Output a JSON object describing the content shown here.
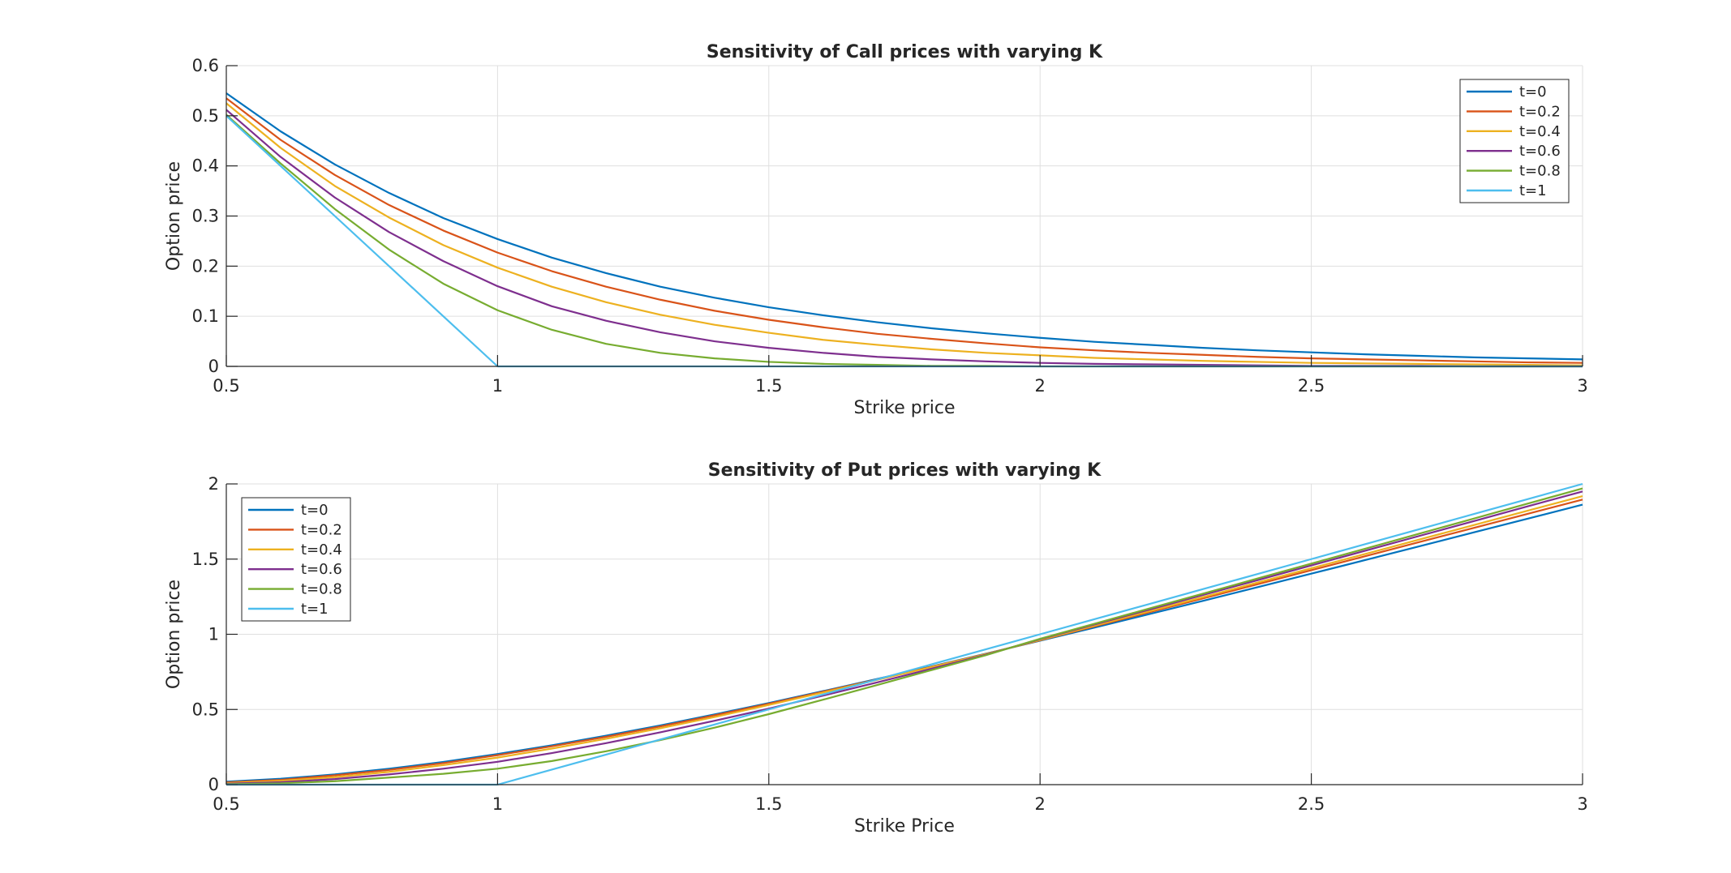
{
  "chart_data": [
    {
      "type": "line",
      "title": "Sensitivity of Call prices with varying K",
      "xlabel": "Strike price",
      "ylabel": "Option price",
      "xlim": [
        0.5,
        3
      ],
      "ylim": [
        0,
        0.6
      ],
      "xticks": [
        "0.5",
        "1",
        "1.5",
        "2",
        "2.5",
        "3"
      ],
      "yticks": [
        "0",
        "0.1",
        "0.2",
        "0.3",
        "0.4",
        "0.5",
        "0.6"
      ],
      "grid": true,
      "legend_position": "top-right",
      "x": [
        0.5,
        0.6,
        0.7,
        0.8,
        0.9,
        1.0,
        1.1,
        1.2,
        1.3,
        1.4,
        1.5,
        1.6,
        1.7,
        1.8,
        1.9,
        2.0,
        2.1,
        2.2,
        2.3,
        2.4,
        2.5,
        2.6,
        2.7,
        2.8,
        2.9,
        3.0
      ],
      "series": [
        {
          "name": "t=0",
          "color": "#0072BD",
          "values": [
            0.545,
            0.469,
            0.403,
            0.346,
            0.296,
            0.254,
            0.217,
            0.186,
            0.159,
            0.137,
            0.118,
            0.102,
            0.088,
            0.076,
            0.066,
            0.057,
            0.049,
            0.043,
            0.037,
            0.032,
            0.028,
            0.024,
            0.021,
            0.018,
            0.016,
            0.014
          ]
        },
        {
          "name": "t=0.2",
          "color": "#D95319",
          "values": [
            0.535,
            0.452,
            0.382,
            0.322,
            0.271,
            0.227,
            0.19,
            0.159,
            0.133,
            0.111,
            0.093,
            0.078,
            0.065,
            0.055,
            0.046,
            0.038,
            0.032,
            0.027,
            0.023,
            0.019,
            0.016,
            0.014,
            0.012,
            0.01,
            0.008,
            0.007
          ]
        },
        {
          "name": "t=0.4",
          "color": "#EDB120",
          "values": [
            0.525,
            0.436,
            0.36,
            0.297,
            0.242,
            0.197,
            0.159,
            0.128,
            0.103,
            0.083,
            0.067,
            0.053,
            0.043,
            0.034,
            0.027,
            0.022,
            0.017,
            0.014,
            0.011,
            0.009,
            0.007,
            0.006,
            0.005,
            0.004,
            0.003,
            0.002
          ]
        },
        {
          "name": "t=0.6",
          "color": "#7E2F8E",
          "values": [
            0.512,
            0.418,
            0.337,
            0.268,
            0.21,
            0.16,
            0.12,
            0.091,
            0.068,
            0.05,
            0.037,
            0.027,
            0.019,
            0.014,
            0.01,
            0.007,
            0.005,
            0.004,
            0.003,
            0.002,
            0.001,
            0.001,
            0.001,
            0.0,
            0.0,
            0.0
          ]
        },
        {
          "name": "t=0.8",
          "color": "#77AC30",
          "values": [
            0.502,
            0.405,
            0.314,
            0.233,
            0.165,
            0.112,
            0.073,
            0.045,
            0.027,
            0.016,
            0.009,
            0.005,
            0.003,
            0.001,
            0.001,
            0.0,
            0.0,
            0.0,
            0.0,
            0.0,
            0.0,
            0.0,
            0.0,
            0.0,
            0.0,
            0.0
          ]
        },
        {
          "name": "t=1",
          "color": "#4DBEEE",
          "values": [
            0.5,
            0.4,
            0.3,
            0.2,
            0.1,
            0.0,
            0.0,
            0.0,
            0.0,
            0.0,
            0.0,
            0.0,
            0.0,
            0.0,
            0.0,
            0.0,
            0.0,
            0.0,
            0.0,
            0.0,
            0.0,
            0.0,
            0.0,
            0.0,
            0.0,
            0.0
          ]
        }
      ]
    },
    {
      "type": "line",
      "title": "Sensitivity of Put prices with varying K",
      "xlabel": "Strike Price",
      "ylabel": "Option price",
      "xlim": [
        0.5,
        3
      ],
      "ylim": [
        0,
        2
      ],
      "xticks": [
        "0.5",
        "1",
        "1.5",
        "2",
        "2.5",
        "3"
      ],
      "yticks": [
        "0",
        "0.5",
        "1",
        "1.5",
        "2"
      ],
      "grid": true,
      "legend_position": "top-left",
      "x": [
        0.5,
        0.6,
        0.7,
        0.8,
        0.9,
        1.0,
        1.1,
        1.2,
        1.3,
        1.4,
        1.5,
        1.6,
        1.7,
        1.8,
        1.9,
        2.0,
        2.1,
        2.2,
        2.3,
        2.4,
        2.5,
        2.6,
        2.7,
        2.8,
        2.9,
        3.0
      ],
      "series": [
        {
          "name": "t=0",
          "color": "#0072BD",
          "values": [
            0.02,
            0.039,
            0.068,
            0.106,
            0.151,
            0.204,
            0.262,
            0.326,
            0.394,
            0.467,
            0.543,
            0.622,
            0.703,
            0.786,
            0.871,
            0.957,
            1.044,
            1.133,
            1.222,
            1.312,
            1.403,
            1.494,
            1.586,
            1.678,
            1.77,
            1.862
          ]
        },
        {
          "name": "t=0.2",
          "color": "#D95319",
          "values": [
            0.015,
            0.032,
            0.062,
            0.098,
            0.143,
            0.196,
            0.255,
            0.318,
            0.387,
            0.461,
            0.538,
            0.618,
            0.7,
            0.784,
            0.869,
            0.96,
            1.052,
            1.145,
            1.238,
            1.332,
            1.426,
            1.52,
            1.614,
            1.708,
            1.802,
            1.896
          ]
        },
        {
          "name": "t=0.4",
          "color": "#EDB120",
          "values": [
            0.01,
            0.025,
            0.05,
            0.085,
            0.13,
            0.18,
            0.24,
            0.305,
            0.375,
            0.45,
            0.53,
            0.613,
            0.697,
            0.782,
            0.868,
            0.962,
            1.057,
            1.152,
            1.247,
            1.343,
            1.439,
            1.535,
            1.631,
            1.727,
            1.823,
            1.919
          ]
        },
        {
          "name": "t=0.6",
          "color": "#7E2F8E",
          "values": [
            0.006,
            0.016,
            0.037,
            0.068,
            0.106,
            0.152,
            0.21,
            0.276,
            0.348,
            0.425,
            0.506,
            0.592,
            0.68,
            0.771,
            0.864,
            0.967,
            1.065,
            1.163,
            1.261,
            1.359,
            1.458,
            1.556,
            1.655,
            1.753,
            1.852,
            1.95
          ]
        },
        {
          "name": "t=0.8",
          "color": "#77AC30",
          "values": [
            0.003,
            0.009,
            0.023,
            0.047,
            0.072,
            0.106,
            0.157,
            0.222,
            0.296,
            0.379,
            0.469,
            0.565,
            0.663,
            0.762,
            0.861,
            0.97,
            1.07,
            1.17,
            1.27,
            1.37,
            1.47,
            1.57,
            1.67,
            1.77,
            1.87,
            1.97
          ]
        },
        {
          "name": "t=1",
          "color": "#4DBEEE",
          "values": [
            0.0,
            0.0,
            0.0,
            0.0,
            0.0,
            0.0,
            0.1,
            0.2,
            0.3,
            0.4,
            0.5,
            0.6,
            0.7,
            0.8,
            0.9,
            1.0,
            1.1,
            1.2,
            1.3,
            1.4,
            1.5,
            1.6,
            1.7,
            1.8,
            1.9,
            2.0
          ]
        }
      ]
    }
  ]
}
